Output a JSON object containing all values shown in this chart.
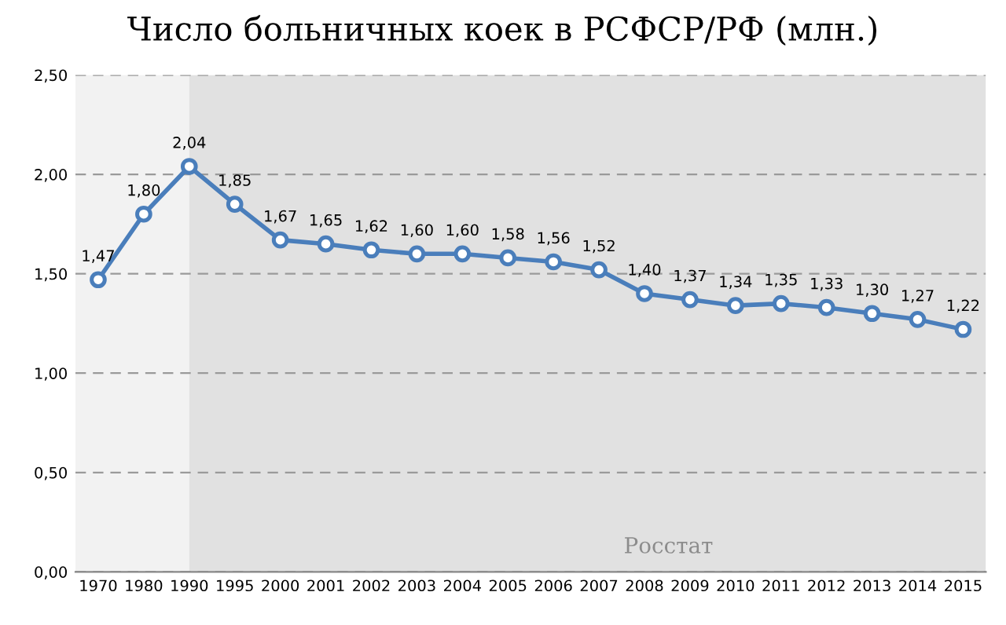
{
  "chart_data": {
    "type": "line",
    "title": "Число больничных коек в РСФСР/РФ (млн.)",
    "categories": [
      "1970",
      "1980",
      "1990",
      "1995",
      "2000",
      "2001",
      "2002",
      "2003",
      "2004",
      "2005",
      "2006",
      "2007",
      "2008",
      "2009",
      "2010",
      "2011",
      "2012",
      "2013",
      "2014",
      "2015"
    ],
    "series": [
      {
        "color": "#4a7ebb",
        "values": [
          1.47,
          1.8,
          2.04,
          1.85,
          1.67,
          1.65,
          1.62,
          1.6,
          1.6,
          1.58,
          1.56,
          1.52,
          1.4,
          1.37,
          1.34,
          1.35,
          1.33,
          1.3,
          1.27,
          1.22
        ],
        "value_labels": [
          "1,47",
          "1,80",
          "2,04",
          "1,85",
          "1,67",
          "1,65",
          "1,62",
          "1,60",
          "1,60",
          "1,58",
          "1,56",
          "1,52",
          "1,40",
          "1,37",
          "1,34",
          "1,35",
          "1,33",
          "1,30",
          "1,27",
          "1,22"
        ]
      }
    ],
    "ylim": [
      0,
      2.5
    ],
    "yticks": [
      {
        "value": 0,
        "label": "0,00"
      },
      {
        "value": 0.5,
        "label": "0,50"
      },
      {
        "value": 1,
        "label": "1,00"
      },
      {
        "value": 1.5,
        "label": "1,50"
      },
      {
        "value": 2,
        "label": "2,00"
      },
      {
        "value": 2.5,
        "label": "2,50"
      }
    ],
    "grid": "y",
    "marker": "circle",
    "line_style": "solid",
    "legend": false,
    "bands": [
      {
        "axis": "x",
        "from": "1970",
        "to": "1990",
        "color": "#f2f2f2"
      },
      {
        "axis": "x",
        "from": "1990",
        "to": "2015",
        "color": "#e1e1e1"
      }
    ],
    "annotations": [
      "Росстат"
    ]
  }
}
